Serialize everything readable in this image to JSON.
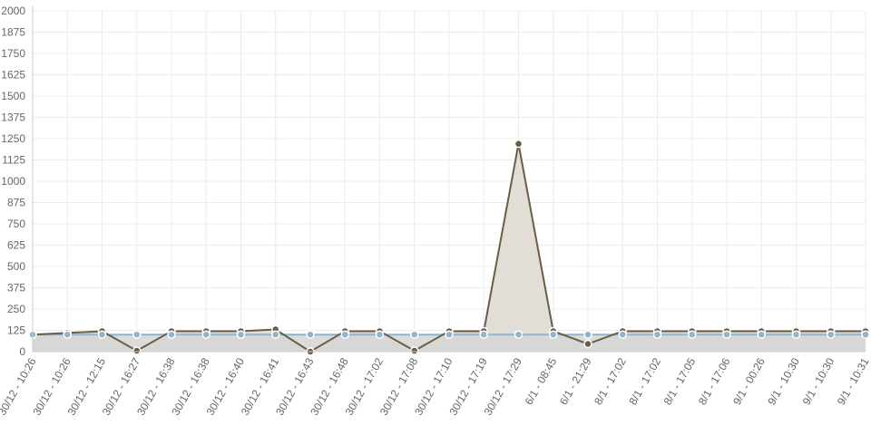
{
  "chart_data": {
    "type": "area",
    "title": "",
    "xlabel": "",
    "ylabel": "",
    "ylim": [
      0,
      2000
    ],
    "yticks": [
      0,
      125,
      250,
      375,
      500,
      625,
      750,
      875,
      1000,
      1125,
      1250,
      1375,
      1500,
      1625,
      1750,
      1875,
      2000
    ],
    "grid": true,
    "legend": "none",
    "categories": [
      "30/12 - 10:26",
      "30/12 - 10:26",
      "30/12 - 12:15",
      "30/12 - 16:27",
      "30/12 - 16:38",
      "30/12 - 16:38",
      "30/12 - 16:40",
      "30/12 - 16:41",
      "30/12 - 16:43",
      "30/12 - 16:48",
      "30/12 - 17:02",
      "30/12 - 17:08",
      "30/12 - 17:10",
      "30/12 - 17:19",
      "30/12 - 17:29",
      "6/1 - 08:45",
      "6/1 - 21:29",
      "8/1 - 17:02",
      "8/1 - 17:02",
      "8/1 - 17:05",
      "8/1 - 17:06",
      "9/1 - 00:26",
      "9/1 - 10:30",
      "9/1 - 10:30",
      "9/1 - 10:31"
    ],
    "series": [
      {
        "color": "#6b5d45",
        "fill": "#e2ddd6",
        "values": [
          100,
          110,
          120,
          5,
          120,
          120,
          120,
          130,
          0,
          120,
          120,
          5,
          120,
          120,
          1220,
          120,
          45,
          120,
          120,
          120,
          120,
          120,
          120,
          120,
          120
        ]
      },
      {
        "color": "#8fb4cc",
        "fill": "#d4d6d6",
        "values": [
          100,
          100,
          100,
          100,
          100,
          100,
          100,
          100,
          100,
          100,
          100,
          100,
          100,
          100,
          100,
          100,
          100,
          100,
          100,
          100,
          100,
          100,
          100,
          100,
          100
        ]
      }
    ]
  }
}
